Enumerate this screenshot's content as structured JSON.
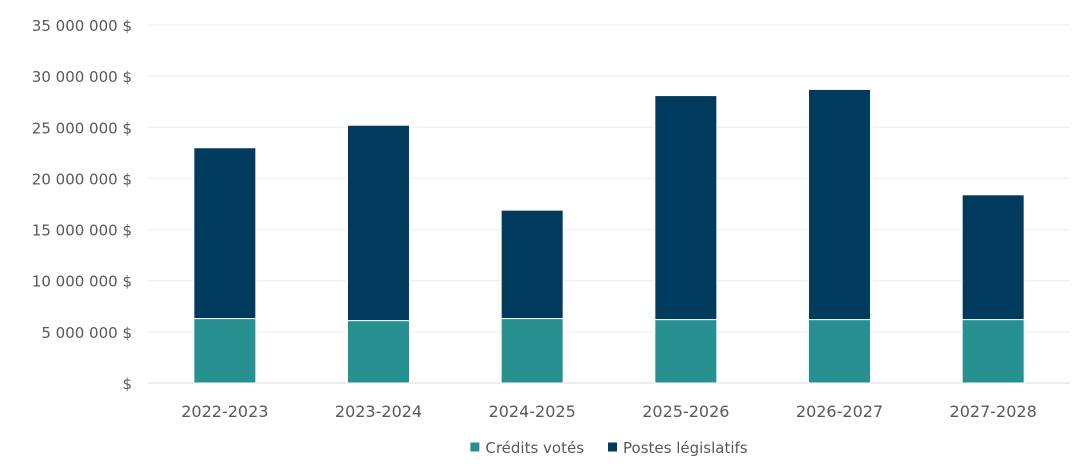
{
  "chart_data": {
    "type": "bar",
    "stacked": true,
    "title": "",
    "xlabel": "",
    "ylabel": "",
    "categories": [
      "2022-2023",
      "2023-2024",
      "2024-2025",
      "2025-2026",
      "2026-2027",
      "2027-2028"
    ],
    "series": [
      {
        "name": "Crédits votés",
        "color": "#269190",
        "values": [
          6300000,
          6100000,
          6300000,
          6200000,
          6200000,
          6200000
        ]
      },
      {
        "name": "Postes législatifs",
        "color": "#003a5d",
        "values": [
          16700000,
          19100000,
          10600000,
          21900000,
          22500000,
          12200000
        ]
      }
    ],
    "ylim": [
      0,
      35000000
    ],
    "y_ticks": [
      0,
      5000000,
      10000000,
      15000000,
      20000000,
      25000000,
      30000000,
      35000000
    ],
    "y_tick_labels": [
      "$",
      "5 000 000 $",
      "10 000 000 $",
      "15 000 000 $",
      "20 000 000 $",
      "25 000 000 $",
      "30 000 000 $",
      "35 000 000 $"
    ],
    "grid": true,
    "legend_position": "bottom"
  }
}
